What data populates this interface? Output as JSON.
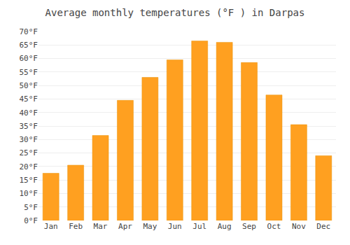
{
  "chart_data": {
    "type": "bar",
    "title": "Average monthly temperatures (°F ) in Darpas",
    "categories": [
      "Jan",
      "Feb",
      "Mar",
      "Apr",
      "May",
      "Jun",
      "Jul",
      "Aug",
      "Sep",
      "Oct",
      "Nov",
      "Dec"
    ],
    "values": [
      17.5,
      20.5,
      31.5,
      44.5,
      53.0,
      59.5,
      66.5,
      66.0,
      58.5,
      46.5,
      35.5,
      24.0
    ],
    "color": "#FFA020",
    "ylim": [
      0,
      70
    ],
    "yticks": [
      {
        "value": 0,
        "label": "0°F"
      },
      {
        "value": 5,
        "label": "5°F"
      },
      {
        "value": 10,
        "label": "10°F"
      },
      {
        "value": 15,
        "label": "15°F"
      },
      {
        "value": 20,
        "label": "20°F"
      },
      {
        "value": 25,
        "label": "25°F"
      },
      {
        "value": 30,
        "label": "30°F"
      },
      {
        "value": 35,
        "label": "35°F"
      },
      {
        "value": 40,
        "label": "40°F"
      },
      {
        "value": 45,
        "label": "45°F"
      },
      {
        "value": 50,
        "label": "50°F"
      },
      {
        "value": 55,
        "label": "55°F"
      },
      {
        "value": 60,
        "label": "60°F"
      },
      {
        "value": 65,
        "label": "65°F"
      },
      {
        "value": 70,
        "label": "70°F"
      }
    ],
    "grid": true
  }
}
